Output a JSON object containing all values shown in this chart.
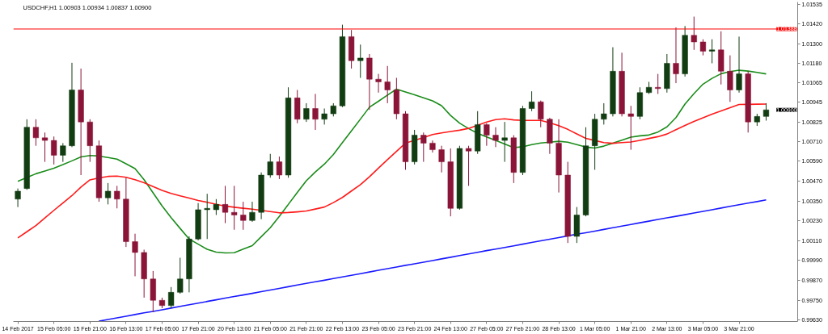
{
  "chart_data": {
    "type": "candlestick",
    "title": "USDCHF,H1 1.00903 1.00934 1.00837 1.00900",
    "categories": [
      "14 Feb 2017",
      null,
      null,
      null,
      "15 Feb 05:00",
      null,
      null,
      null,
      "15 Feb 21:00",
      null,
      null,
      null,
      "16 Feb 13:00",
      null,
      null,
      null,
      "17 Feb 05:00",
      null,
      null,
      null,
      "17 Feb 21:00",
      null,
      null,
      null,
      "20 Feb 13:00",
      null,
      null,
      null,
      "21 Feb 05:00",
      null,
      null,
      null,
      "21 Feb 21:00",
      null,
      null,
      null,
      "22 Feb 13:00",
      null,
      null,
      null,
      "23 Feb 05:00",
      null,
      null,
      null,
      "23 Feb 21:00",
      null,
      null,
      null,
      "24 Feb 13:00",
      null,
      null,
      null,
      "27 Feb 05:00",
      null,
      null,
      null,
      "27 Feb 21:00",
      null,
      null,
      null,
      "28 Feb 13:00",
      null,
      null,
      null,
      "1 Mar 05:00",
      null,
      null,
      null,
      "1 Mar 21:00",
      null,
      null,
      null,
      "2 Mar 13:00",
      null,
      null,
      null,
      "3 Mar 05:00",
      null,
      null,
      null,
      "3 Mar 21:00",
      null,
      null,
      null
    ],
    "ohlc": [
      [
        1.00361,
        1.00425,
        1.00313,
        1.00409
      ],
      [
        1.00425,
        1.00843,
        1.00417,
        1.00795
      ],
      [
        1.00795,
        1.00843,
        1.00683,
        1.00731
      ],
      [
        1.00731,
        1.00763,
        1.00586,
        1.00715
      ],
      [
        1.00715,
        1.00739,
        1.0057,
        1.00626
      ],
      [
        1.00626,
        1.00699,
        1.00586,
        1.00683
      ],
      [
        1.00683,
        1.01184,
        1.00675,
        1.0102
      ],
      [
        1.0102,
        1.01149,
        1.00506,
        1.00827
      ],
      [
        1.00827,
        1.00843,
        1.00586,
        1.00683
      ],
      [
        1.00683,
        1.00715,
        1.00345,
        1.00369
      ],
      [
        1.00369,
        1.00458,
        1.00329,
        1.00409
      ],
      [
        1.00409,
        1.00441,
        1.00305,
        1.00361
      ],
      [
        1.00361,
        1.0049,
        1.00072,
        1.00104
      ],
      [
        1.00104,
        1.00152,
        0.99895,
        1.00039
      ],
      [
        1.00039,
        1.00056,
        0.99766,
        0.99879
      ],
      [
        0.99879,
        0.99927,
        0.99678,
        0.9975
      ],
      [
        0.9975,
        0.99766,
        0.99702,
        0.99718
      ],
      [
        0.99718,
        0.9983,
        0.99702,
        0.99798
      ],
      [
        0.99798,
        1.00007,
        0.9979,
        0.99879
      ],
      [
        0.99879,
        1.00136,
        0.99798,
        1.0012
      ],
      [
        1.0012,
        1.00337,
        1.00112,
        1.00297
      ],
      [
        1.00297,
        1.00393,
        1.0012,
        1.00305
      ],
      [
        1.00297,
        1.00361,
        1.00265,
        1.00329
      ],
      [
        1.00329,
        1.00441,
        1.00216,
        1.00281
      ],
      [
        1.00281,
        1.00441,
        1.00176,
        1.00265
      ],
      [
        1.00265,
        1.00345,
        1.00176,
        1.00232
      ],
      [
        1.00232,
        1.00345,
        1.00224,
        1.00281
      ],
      [
        1.00281,
        1.00522,
        1.0024,
        1.00506
      ],
      [
        1.00506,
        1.00634,
        1.0049,
        1.00586
      ],
      [
        1.00586,
        1.00618,
        1.00482,
        1.00506
      ],
      [
        1.00506,
        1.01036,
        1.0049,
        1.00972
      ],
      [
        1.00972,
        1.0102,
        1.00819,
        1.00843
      ],
      [
        1.00843,
        1.0094,
        1.00827,
        1.00908
      ],
      [
        1.00908,
        1.00996,
        1.00779,
        1.00843
      ],
      [
        1.00843,
        1.00908,
        1.00811,
        1.00876
      ],
      [
        1.00876,
        1.0094,
        1.0086,
        1.00924
      ],
      [
        1.00924,
        1.01414,
        1.00916,
        1.01342
      ],
      [
        1.01342,
        1.01382,
        1.01149,
        1.01197
      ],
      [
        1.01197,
        1.01294,
        1.01093,
        1.01213
      ],
      [
        1.01213,
        1.01237,
        1.009,
        1.01085
      ],
      [
        1.01085,
        1.01117,
        1.01004,
        1.01069
      ],
      [
        1.01069,
        1.01165,
        1.0094,
        1.0102
      ],
      [
        1.0102,
        1.01093,
        1.00843,
        1.00876
      ],
      [
        1.00876,
        1.00892,
        1.00538,
        1.00586
      ],
      [
        1.00586,
        1.00779,
        1.0057,
        1.00747
      ],
      [
        1.00747,
        1.00763,
        1.00586,
        1.00699
      ],
      [
        1.00699,
        1.00715,
        1.00642,
        1.00659
      ],
      [
        1.00659,
        1.00683,
        1.00522,
        1.00586
      ],
      [
        1.00586,
        1.00667,
        1.00257,
        1.00305
      ],
      [
        1.00305,
        1.00683,
        1.00297,
        1.00667
      ],
      [
        1.00667,
        1.00683,
        1.00441,
        1.00651
      ],
      [
        1.00651,
        1.00892,
        1.00634,
        1.00811
      ],
      [
        1.00811,
        1.00819,
        1.00683,
        1.00747
      ],
      [
        1.00747,
        1.00795,
        1.00675,
        1.00715
      ],
      [
        1.00715,
        1.00827,
        1.00586,
        1.00731
      ],
      [
        1.00731,
        1.00747,
        1.00458,
        1.00522
      ],
      [
        1.00522,
        1.00924,
        1.00506,
        1.00908
      ],
      [
        1.00908,
        1.01012,
        1.00892,
        1.00948
      ],
      [
        1.00948,
        1.00956,
        1.00795,
        1.00843
      ],
      [
        1.00843,
        1.00852,
        1.00634,
        1.00699
      ],
      [
        1.00699,
        1.00843,
        1.00401,
        1.00506
      ],
      [
        1.00506,
        1.00586,
        1.00096,
        1.00136
      ],
      [
        1.00136,
        1.00313,
        1.00096,
        1.00265
      ],
      [
        1.00265,
        1.00795,
        1.00257,
        1.00683
      ],
      [
        1.00683,
        1.00876,
        1.00538,
        1.00843
      ],
      [
        1.00843,
        1.0094,
        1.00811,
        1.00876
      ],
      [
        1.00876,
        1.01278,
        1.0086,
        1.01133
      ],
      [
        1.01133,
        1.01245,
        1.0086,
        1.00876
      ],
      [
        1.00876,
        1.00924,
        1.00659,
        1.0086
      ],
      [
        1.0086,
        1.01036,
        1.00843,
        1.01004
      ],
      [
        1.01004,
        1.01069,
        1.00996,
        1.01036
      ],
      [
        1.01036,
        1.01117,
        1.00996,
        1.01028
      ],
      [
        1.01028,
        1.01237,
        1.01004,
        1.01181
      ],
      [
        1.01181,
        1.01398,
        1.01061,
        1.01117
      ],
      [
        1.01117,
        1.01406,
        1.01101,
        1.0135
      ],
      [
        1.0135,
        1.01463,
        1.01262,
        1.0131
      ],
      [
        1.0131,
        1.01326,
        1.01229,
        1.01254
      ],
      [
        1.01254,
        1.01326,
        1.01181,
        1.01262
      ],
      [
        1.01262,
        1.01374,
        1.01053,
        1.01133
      ],
      [
        1.01133,
        1.01229,
        1.00948,
        1.0102
      ],
      [
        1.0102,
        1.01342,
        1.01004,
        1.01117
      ],
      [
        1.01117,
        1.01133,
        1.00763,
        1.00827
      ],
      [
        1.00827,
        1.00876,
        1.00803,
        1.0086
      ],
      [
        1.0086,
        1.0094,
        1.00835,
        1.009
      ]
    ],
    "colors": [
      "#123d12",
      "#123d12",
      "#8a1538",
      "#8a1538",
      "#8a1538",
      "#123d12",
      "#123d12",
      "#8a1538",
      "#8a1538",
      "#8a1538",
      "#123d12",
      "#8a1538",
      "#8a1538",
      "#8a1538",
      "#8a1538",
      "#8a1538",
      "#8a1538",
      "#123d12",
      "#123d12",
      "#123d12",
      "#123d12",
      "#123d12",
      "#123d12",
      "#8a1538",
      "#8a1538",
      "#8a1538",
      "#123d12",
      "#123d12",
      "#123d12",
      "#8a1538",
      "#123d12",
      "#8a1538",
      "#123d12",
      "#8a1538",
      "#123d12",
      "#123d12",
      "#123d12",
      "#8a1538",
      "#123d12",
      "#8a1538",
      "#8a1538",
      "#8a1538",
      "#8a1538",
      "#8a1538",
      "#123d12",
      "#8a1538",
      "#8a1538",
      "#8a1538",
      "#8a1538",
      "#123d12",
      "#8a1538",
      "#123d12",
      "#8a1538",
      "#8a1538",
      "#123d12",
      "#8a1538",
      "#123d12",
      "#123d12",
      "#8a1538",
      "#8a1538",
      "#8a1538",
      "#8a1538",
      "#123d12",
      "#123d12",
      "#123d12",
      "#123d12",
      "#123d12",
      "#8a1538",
      "#8a1538",
      "#123d12",
      "#123d12",
      "#8a1538",
      "#123d12",
      "#8a1538",
      "#123d12",
      "#8a1538",
      "#8a1538",
      "#123d12",
      "#8a1538",
      "#8a1538",
      "#123d12",
      "#8a1538",
      "#123d12",
      "#123d12"
    ],
    "series": [
      {
        "type": "line",
        "color": "#1a8c1a",
        "values": [
          1.00468,
          1.00491,
          1.00514,
          1.00531,
          1.00548,
          1.00569,
          1.00592,
          1.00616,
          1.00624,
          1.00621,
          1.00612,
          1.00602,
          1.00574,
          1.00545,
          1.00478,
          1.00399,
          1.0032,
          1.00249,
          1.00184,
          1.0012,
          1.00089,
          1.00058,
          1.00041,
          1.00036,
          1.00037,
          1.00059,
          1.0008,
          1.00134,
          1.00188,
          1.00256,
          1.00329,
          1.00401,
          1.00472,
          1.00525,
          1.00572,
          1.0063,
          1.00702,
          1.00773,
          1.00844,
          1.00916,
          1.00952,
          1.00989,
          1.01025,
          1.01008,
          1.00991,
          1.00973,
          1.00954,
          1.00925,
          1.00866,
          1.0082,
          1.00787,
          1.00758,
          1.00736,
          1.00715,
          1.00694,
          1.00672,
          1.00677,
          1.0069,
          1.007,
          1.00705,
          1.0071,
          1.00705,
          1.0069,
          1.00675,
          1.00669,
          1.00681,
          1.00699,
          1.00717,
          1.00735,
          1.00743,
          1.00748,
          1.00766,
          1.00797,
          1.00853,
          1.00935,
          1.00998,
          1.01055,
          1.0109,
          1.01118,
          1.01131,
          1.01139,
          1.01134,
          1.01126,
          1.01117
        ]
      },
      {
        "type": "line",
        "color": "#ff1a1a",
        "values": [
          1.00127,
          1.00164,
          1.00201,
          1.00247,
          1.00293,
          1.00338,
          1.00382,
          1.00434,
          1.00477,
          1.00489,
          1.00498,
          1.005,
          1.00493,
          1.00478,
          1.0046,
          1.00437,
          1.00414,
          1.00395,
          1.00381,
          1.00367,
          1.00353,
          1.00342,
          1.0033,
          1.00319,
          1.00312,
          1.00306,
          1.003,
          1.00293,
          1.00286,
          1.00278,
          1.0028,
          1.00284,
          1.00289,
          1.00301,
          1.00313,
          1.0034,
          1.00371,
          1.0041,
          1.00448,
          1.00496,
          1.00548,
          1.00599,
          1.00649,
          1.00699,
          1.00716,
          1.00733,
          1.00751,
          1.00761,
          1.00769,
          1.00777,
          1.00788,
          1.00807,
          1.00826,
          1.00841,
          1.00846,
          1.00839,
          1.00836,
          1.00836,
          1.00836,
          1.00822,
          1.00804,
          1.00782,
          1.00755,
          1.00728,
          1.00715,
          1.00702,
          1.00698,
          1.00702,
          1.00706,
          1.00716,
          1.00727,
          1.00738,
          1.00754,
          1.0078,
          1.00806,
          1.0083,
          1.00852,
          1.00874,
          1.00893,
          1.00913,
          1.00932,
          1.00933,
          1.00934,
          1.00935
        ]
      },
      {
        "type": "line",
        "color": "#1a1aff",
        "values": [
          null,
          null,
          null,
          null,
          null,
          null,
          null,
          null,
          null,
          0.99624,
          0.99634,
          0.99644,
          0.99654,
          0.99664,
          0.99674,
          0.99683,
          0.99693,
          0.99703,
          0.99713,
          0.99723,
          0.99733,
          0.99743,
          0.99753,
          0.99763,
          0.99773,
          0.99782,
          0.99792,
          0.99802,
          0.99812,
          0.99822,
          0.99832,
          0.99842,
          0.99852,
          0.99862,
          0.99871,
          0.99881,
          0.99891,
          0.99901,
          0.99911,
          0.99921,
          0.99931,
          0.99941,
          0.99951,
          0.99961,
          0.9997,
          0.9998,
          0.9999,
          1.0,
          1.0001,
          1.0002,
          1.0003,
          1.0004,
          1.0005,
          1.00059,
          1.00069,
          1.00079,
          1.00089,
          1.00099,
          1.00109,
          1.00119,
          1.00129,
          1.00139,
          1.00149,
          1.00158,
          1.00168,
          1.00178,
          1.00188,
          1.00198,
          1.00208,
          1.00218,
          1.00228,
          1.00238,
          1.00248,
          1.00257,
          1.00267,
          1.00277,
          1.00287,
          1.00297,
          1.00307,
          1.00317,
          1.00327,
          1.00337,
          1.00346,
          1.00356
        ]
      }
    ],
    "ref_lines": [
      {
        "axis": "y",
        "value": 1.01388,
        "label": "1.01388",
        "color": "#ff0000"
      }
    ],
    "annotations": [
      "1.00900"
    ],
    "ylim": [
      0.99622,
      1.01551
    ],
    "yticks": [
      1.01535,
      {
        "value": 1.0142,
        "label": "1.01420"
      },
      {
        "value": 1.013,
        "label": "1.01300"
      },
      {
        "value": 1.0118,
        "label": "1.01180"
      },
      1.01065,
      1.00945,
      1.00825,
      {
        "value": 1.0071,
        "label": "1.00710"
      },
      {
        "value": 1.0059,
        "label": "1.00590"
      },
      {
        "value": 1.0047,
        "label": "1.00470"
      },
      {
        "value": 1.0035,
        "label": "1.00350"
      },
      {
        "value": 1.0023,
        "label": "1.00230"
      },
      {
        "value": 1.0011,
        "label": "1.00110"
      },
      {
        "value": 0.9999,
        "label": "0.99990"
      },
      {
        "value": 0.9987,
        "label": "0.99870"
      },
      {
        "value": 0.9975,
        "label": "0.99750"
      },
      {
        "value": 0.9963,
        "label": "0.99630"
      }
    ]
  }
}
